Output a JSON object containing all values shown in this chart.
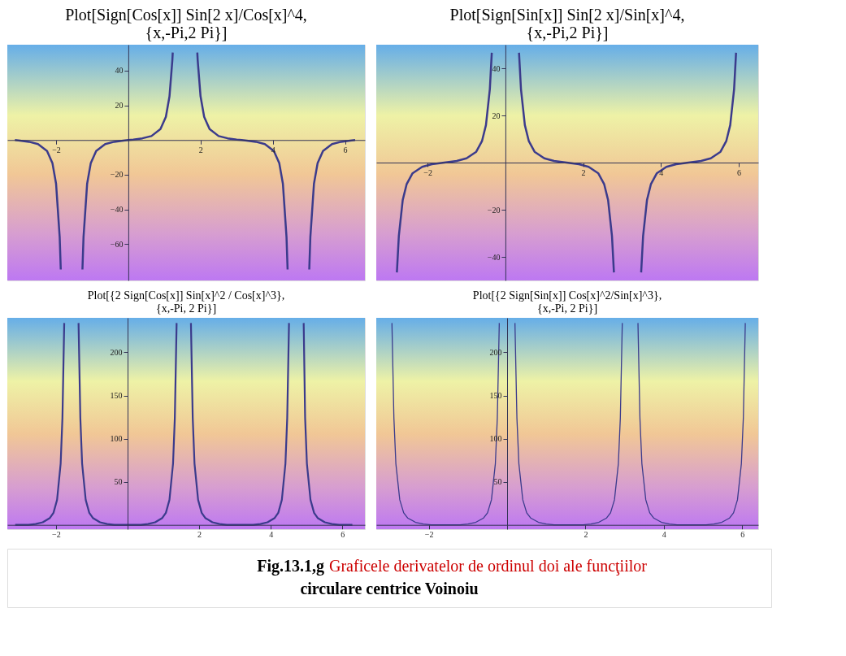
{
  "chart_data": [
    {
      "type": "line",
      "title": "Plot[Sign[Cos[x]] Sin[2 x]/Cos[x]^4,\n{x,-Pi,2 Pi}]",
      "xlim": [
        -3.35,
        6.55
      ],
      "ylim": [
        -81,
        55
      ],
      "xticks": [
        -2,
        2,
        4,
        6
      ],
      "yticks": [
        -60,
        -40,
        -20,
        20,
        40
      ],
      "x": [
        -3.14,
        -3.0,
        -2.75,
        -2.5,
        -2.25,
        -2.1,
        -2.0,
        -1.9,
        -1.87,
        -1.57,
        -1.27,
        -1.24,
        -1.14,
        -1.04,
        -0.89,
        -0.64,
        -0.39,
        -0.14,
        0,
        0.14,
        0.39,
        0.64,
        0.89,
        1.04,
        1.14,
        1.22,
        1.23,
        1.57,
        1.91,
        1.92,
        2.0,
        2.1,
        2.25,
        2.5,
        2.75,
        3.0,
        3.14,
        3.28,
        3.53,
        3.78,
        4.03,
        4.18,
        4.28,
        4.38,
        4.41,
        4.71,
        5.01,
        5.04,
        5.14,
        5.24,
        5.39,
        5.64,
        5.89,
        6.14,
        6.28
      ],
      "series": [
        {
          "color": "#3b3b8c",
          "values": [
            0,
            -0.3,
            -1.0,
            -2.3,
            -6.3,
            -13.4,
            -25.2,
            -56.0,
            -74.7,
            null,
            -74.7,
            -56.0,
            -25.2,
            -13.4,
            -6.3,
            -2.3,
            -1.0,
            -0.3,
            0,
            0.3,
            1.0,
            2.3,
            6.3,
            13.4,
            25.2,
            46.3,
            50.5,
            null,
            50.5,
            46.3,
            25.2,
            13.4,
            6.3,
            2.3,
            1.0,
            0.3,
            0,
            -0.3,
            -1.0,
            -2.3,
            -6.3,
            -13.4,
            -25.2,
            -56.0,
            -74.7,
            null,
            -74.7,
            -56.0,
            -25.2,
            -13.4,
            -6.3,
            -2.3,
            -1.0,
            -0.3,
            0
          ]
        }
      ]
    },
    {
      "type": "line",
      "title": "Plot[Sign[Sin[x]] Sin[2 x]/Sin[x]^4,\n{x,-Pi,2 Pi}]",
      "xlim": [
        -3.32,
        6.5
      ],
      "ylim": [
        -50,
        50
      ],
      "xticks": [
        -2,
        2,
        4,
        6
      ],
      "yticks": [
        -40,
        -20,
        20,
        40
      ],
      "x": [
        -2.79,
        -2.74,
        -2.64,
        -2.54,
        -2.39,
        -2.14,
        -1.89,
        -1.57,
        -1.25,
        -1.0,
        -0.75,
        -0.6,
        -0.5,
        -0.4,
        -0.35,
        0,
        0.35,
        0.4,
        0.5,
        0.6,
        0.75,
        1.0,
        1.25,
        1.57,
        1.89,
        2.14,
        2.39,
        2.54,
        2.64,
        2.74,
        2.79,
        3.14,
        3.49,
        3.54,
        3.64,
        3.74,
        3.89,
        4.14,
        4.39,
        4.71,
        5.03,
        5.28,
        5.53,
        5.68,
        5.78,
        5.88,
        5.93
      ],
      "series": [
        {
          "color": "#3b3b8c",
          "values": [
            -46.6,
            -31.2,
            -15.9,
            -9.2,
            -4.6,
            -1.8,
            -0.7,
            0,
            0.7,
            1.8,
            4.6,
            9.2,
            15.9,
            31.2,
            46.6,
            null,
            46.6,
            31.2,
            15.9,
            9.2,
            4.6,
            1.8,
            0.7,
            0,
            -0.7,
            -1.8,
            -4.6,
            -9.2,
            -15.9,
            -31.2,
            -46.6,
            null,
            -46.6,
            -31.2,
            -15.9,
            -9.2,
            -4.6,
            -1.8,
            -0.7,
            0,
            0.7,
            1.8,
            4.6,
            9.2,
            15.9,
            31.2,
            46.6
          ]
        }
      ]
    },
    {
      "type": "line",
      "title": "Plot[{2 Sign[Cos[x]] Sin[x]^2 / Cos[x]^3},\n{x,-Pi, 2 Pi}]",
      "xlim": [
        -3.36,
        6.63
      ],
      "ylim": [
        -5,
        240
      ],
      "xticks": [
        -2,
        2,
        4,
        6
      ],
      "yticks": [
        50,
        100,
        150,
        200
      ],
      "x": [
        -3.14,
        -2.77,
        -2.57,
        -2.37,
        -2.17,
        -2.07,
        -1.97,
        -1.87,
        -1.82,
        -1.77,
        -1.57,
        -1.37,
        -1.32,
        -1.27,
        -1.17,
        -1.07,
        -0.97,
        -0.77,
        -0.57,
        -0.37,
        0,
        0.37,
        0.57,
        0.77,
        0.97,
        1.07,
        1.17,
        1.27,
        1.32,
        1.37,
        1.57,
        1.77,
        1.82,
        1.87,
        1.97,
        2.07,
        2.17,
        2.37,
        2.57,
        2.77,
        3.14,
        3.51,
        3.71,
        3.91,
        4.11,
        4.21,
        4.31,
        4.41,
        4.46,
        4.51,
        4.71,
        4.92,
        4.96,
        5.01,
        5.11,
        5.21,
        5.31,
        5.51,
        5.71,
        5.91,
        6.28
      ],
      "series": [
        {
          "color": "#3b3b8c",
          "values": [
            0,
            0,
            1,
            3,
            8,
            14,
            29,
            71,
            124,
            234,
            null,
            234,
            124,
            71,
            29,
            14,
            8,
            3,
            1,
            0,
            0,
            0,
            1,
            3,
            8,
            14,
            29,
            71,
            124,
            234,
            null,
            234,
            124,
            71,
            29,
            14,
            8,
            3,
            1,
            0,
            0,
            0,
            1,
            3,
            8,
            14,
            29,
            71,
            124,
            234,
            null,
            234,
            124,
            71,
            29,
            14,
            8,
            3,
            1,
            0,
            0
          ]
        }
      ]
    },
    {
      "type": "line",
      "title": "Plot[{2 Sign[Sin[x]] Cos[x]^2/Sin[x]^3},\n{x,-Pi, 2 Pi}]",
      "xlim": [
        -3.34,
        6.41
      ],
      "ylim": [
        -5,
        240
      ],
      "xticks": [
        -2,
        2,
        4,
        6
      ],
      "yticks": [
        50,
        100,
        150,
        200
      ],
      "x": [
        -2.94,
        -2.89,
        -2.84,
        -2.74,
        -2.64,
        -2.54,
        -2.34,
        -2.14,
        -1.94,
        -1.57,
        -1.2,
        -1.0,
        -0.8,
        -0.6,
        -0.5,
        -0.4,
        -0.3,
        -0.25,
        -0.2,
        0,
        0.2,
        0.25,
        0.3,
        0.4,
        0.5,
        0.6,
        0.8,
        1.0,
        1.2,
        1.57,
        1.94,
        2.14,
        2.34,
        2.54,
        2.64,
        2.74,
        2.84,
        2.89,
        2.94,
        3.14,
        3.34,
        3.39,
        3.44,
        3.54,
        3.64,
        3.74,
        3.94,
        4.14,
        4.34,
        4.71,
        5.08,
        5.28,
        5.48,
        5.68,
        5.78,
        5.88,
        5.98,
        6.03,
        6.08
      ],
      "series": [
        {
          "color": "#3b3b8c",
          "values": [
            234,
            124,
            71,
            29,
            14,
            8,
            3,
            1,
            0,
            0,
            0,
            1,
            3,
            8,
            14,
            29,
            71,
            124,
            234,
            null,
            234,
            124,
            71,
            29,
            14,
            8,
            3,
            1,
            0,
            0,
            0,
            1,
            3,
            8,
            14,
            29,
            71,
            124,
            234,
            null,
            234,
            124,
            71,
            29,
            14,
            8,
            3,
            1,
            0,
            0,
            0,
            1,
            3,
            8,
            14,
            29,
            71,
            124,
            234
          ]
        }
      ]
    },
    {
      "type": "other",
      "annotations": [
        "Fig.13.1,g",
        "Graficele derivatelor de ordinul doi ale funcţiilor",
        "circulare centrice Voinoiu"
      ]
    }
  ]
}
